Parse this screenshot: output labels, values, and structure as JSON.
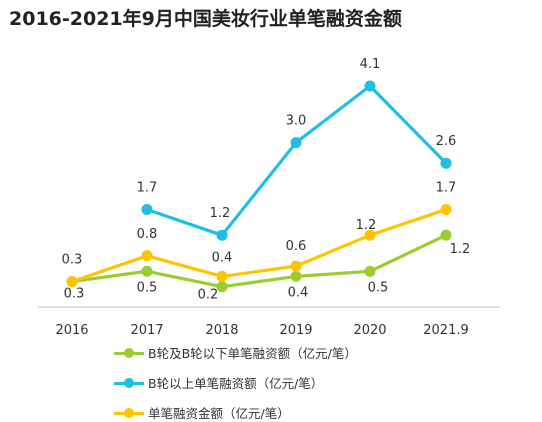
{
  "chart_data": {
    "type": "line",
    "title": "2016-2021年9月中国美妆行业单笔融资金额",
    "categories": [
      "2016",
      "2017",
      "2018",
      "2019",
      "2020",
      "2021.9"
    ],
    "series": [
      {
        "name": "B轮及B轮以下单笔融资额（亿元/笔）",
        "color": "#9ACD32",
        "values": [
          0.3,
          0.5,
          0.2,
          0.4,
          0.5,
          1.2
        ],
        "labels": [
          "0.3",
          "0.5",
          "0.2",
          "0.4",
          "0.5",
          "1.2"
        ]
      },
      {
        "name": "B轮以上单笔融资额（亿元/笔）",
        "color": "#1DBFE6",
        "values": [
          null,
          1.7,
          1.2,
          3.0,
          4.1,
          2.6
        ],
        "labels": [
          null,
          "1.7",
          "1.2",
          "3.0",
          "4.1",
          "2.6"
        ]
      },
      {
        "name": "单笔融资金额（亿元/笔）",
        "color": "#FFC400",
        "values": [
          0.3,
          0.8,
          0.4,
          0.6,
          1.2,
          1.7
        ],
        "labels": [
          "0.3",
          "0.8",
          "0.4",
          "0.6",
          "1.2",
          "1.7"
        ]
      }
    ],
    "xlabel": "",
    "ylabel": "",
    "ylim": [
      0,
      4.5
    ],
    "grid": false,
    "legend_position": "bottom"
  }
}
